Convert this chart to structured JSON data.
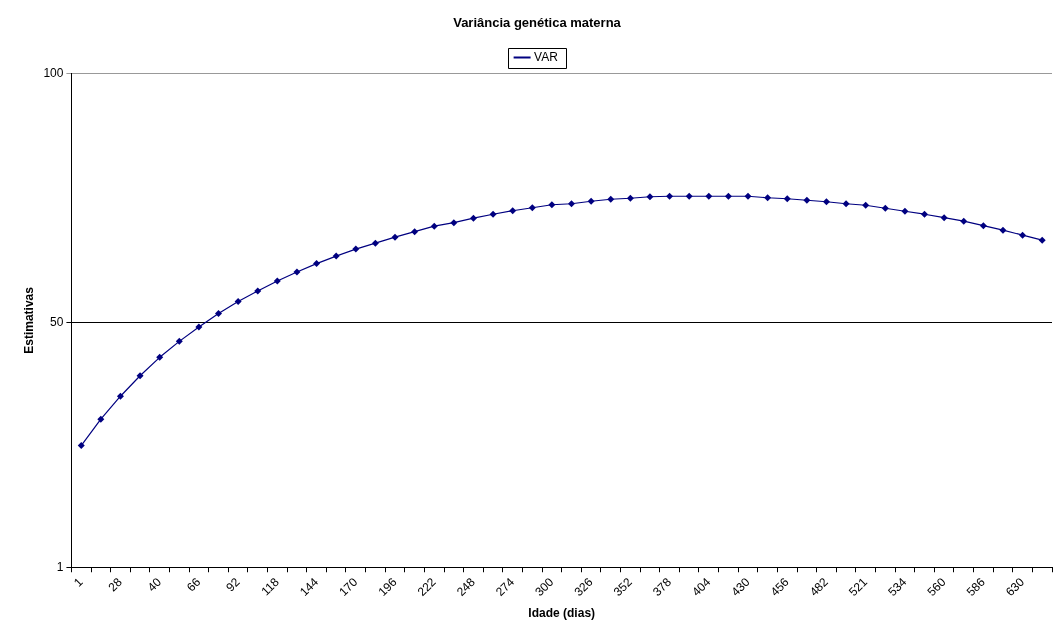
{
  "chart_data": {
    "type": "line",
    "title": "Variância genética materna",
    "xlabel": "Idade (dias)",
    "ylabel": "Estimativas",
    "categories": [
      "1",
      null,
      "28",
      null,
      "40",
      null,
      "66",
      null,
      "92",
      null,
      "118",
      null,
      "144",
      null,
      "170",
      null,
      "196",
      null,
      "222",
      null,
      "248",
      null,
      "274",
      null,
      "300",
      null,
      "326",
      null,
      "352",
      null,
      "378",
      null,
      "404",
      null,
      "430",
      null,
      "456",
      null,
      "482",
      null,
      "521",
      null,
      "534",
      null,
      "560",
      null,
      "586",
      null,
      "630",
      null
    ],
    "series": [
      {
        "name": "VAR",
        "color": "#000080",
        "values": [
          25.4,
          30.7,
          35.3,
          39.4,
          43.1,
          46.3,
          49.2,
          51.9,
          54.3,
          56.4,
          58.4,
          60.2,
          61.9,
          63.4,
          64.8,
          66.0,
          67.2,
          68.3,
          69.4,
          70.1,
          71.0,
          71.8,
          72.5,
          73.1,
          73.7,
          73.9,
          74.4,
          74.8,
          75.0,
          75.3,
          75.4,
          75.4,
          75.4,
          75.4,
          75.4,
          75.1,
          74.9,
          74.6,
          74.3,
          73.9,
          73.6,
          73.0,
          72.4,
          71.8,
          71.1,
          70.4,
          69.5,
          68.6,
          67.6,
          66.6
        ]
      }
    ],
    "ylim": [
      1,
      100
    ],
    "yticks": [
      1,
      50,
      100
    ],
    "grid": "y",
    "legend": "top",
    "marker": "diamond",
    "line_style": "solid"
  }
}
